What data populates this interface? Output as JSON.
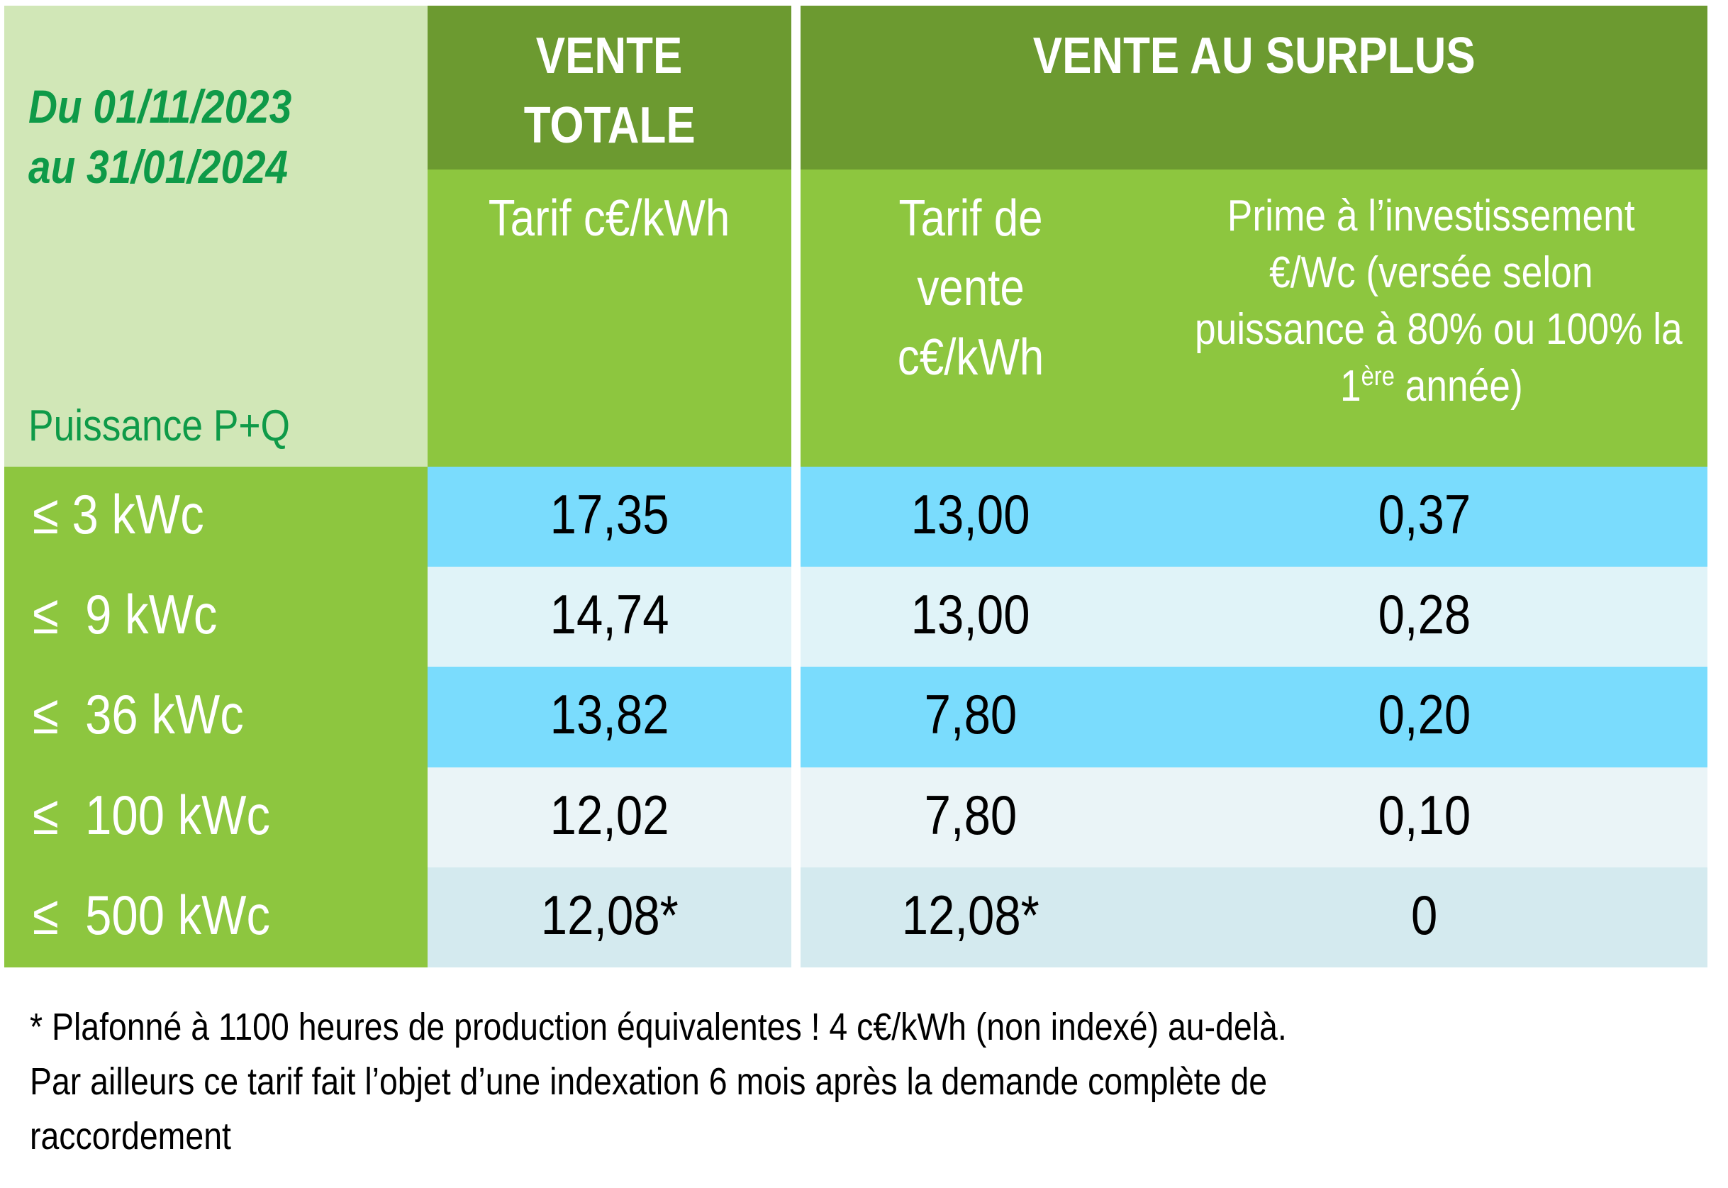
{
  "period": {
    "line1": "Du 01/11/2023",
    "line2": "au 31/01/2024"
  },
  "row_header_label": "Puissance P+Q",
  "groups": {
    "vente_totale": {
      "title_line1": "VENTE",
      "title_line2": "TOTALE",
      "columns": [
        {
          "label": "Tarif c€/kWh"
        }
      ]
    },
    "vente_surplus": {
      "title": "VENTE AU SURPLUS",
      "columns": [
        {
          "label_lines": [
            "Tarif de",
            "vente",
            "c€/kWh"
          ]
        },
        {
          "label_lines": [
            "Prime à l’investissement",
            "€/Wc (versée selon",
            "puissance à 80% ou 100% la"
          ],
          "label_last_prefix": "1",
          "label_last_sup": "ère",
          "label_last_suffix": " année)"
        }
      ]
    }
  },
  "rows": [
    {
      "power": "≤ 3 kWc",
      "vente_totale": "17,35",
      "tarif_surplus": "13,00",
      "prime": "0,37"
    },
    {
      "power": "≤  9 kWc",
      "vente_totale": "14,74",
      "tarif_surplus": "13,00",
      "prime": "0,28"
    },
    {
      "power": "≤  36 kWc",
      "vente_totale": "13,82",
      "tarif_surplus": "7,80",
      "prime": "0,20"
    },
    {
      "power": "≤  100 kWc",
      "vente_totale": "12,02",
      "tarif_surplus": "7,80",
      "prime": "0,10"
    },
    {
      "power": "≤  500 kWc",
      "vente_totale": "12,08*",
      "tarif_surplus": "12,08*",
      "prime": "0"
    }
  ],
  "row_colors": [
    "#7ADCFD",
    "#E0F3F8",
    "#7ADCFD",
    "#EAF4F7",
    "#D4EAEF"
  ],
  "colors": {
    "header_dark": "#6C9A30",
    "header_light": "#8DC63F",
    "corner": "#D1E7B7",
    "date_text": "#0E9A48"
  },
  "footnote": {
    "line1": "* Plafonné à 1100 heures de production équivalentes ! 4 c€/kWh (non indexé) au-delà.",
    "line2": "Par ailleurs ce tarif fait l’objet d’une indexation 6 mois après la demande complète de",
    "line3": "raccordement"
  }
}
